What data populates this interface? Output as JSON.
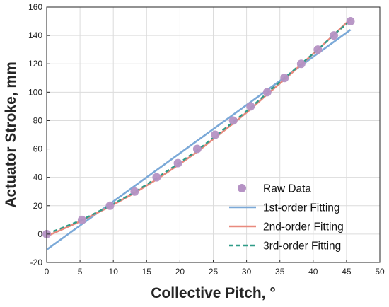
{
  "chart_data": {
    "type": "line",
    "title": "",
    "xlabel": "Collective Pitch, °",
    "ylabel": "Actuator Stroke, mm",
    "xlim": [
      0,
      50
    ],
    "ylim": [
      -20,
      160
    ],
    "xticks": [
      "0",
      "5",
      "10",
      "15",
      "20",
      "25",
      "30",
      "35",
      "40",
      "45",
      "50"
    ],
    "yticks": [
      "-20",
      "0",
      "20",
      "40",
      "60",
      "80",
      "100",
      "120",
      "140",
      "160"
    ],
    "grid": true,
    "legend_position": "bottom-right",
    "series": [
      {
        "name": "Raw Data",
        "kind": "scatter",
        "color": "#b592c4",
        "x": [
          0,
          5.3,
          9.5,
          13.2,
          16.5,
          19.7,
          22.6,
          25.3,
          28,
          30.6,
          33.1,
          35.7,
          38.2,
          40.7,
          43.1,
          45.6
        ],
        "y": [
          0,
          10,
          20,
          30,
          40,
          50,
          60,
          70,
          80,
          90,
          100,
          110,
          120,
          130,
          140,
          150
        ]
      },
      {
        "name": "1st-order Fitting",
        "kind": "line",
        "color": "#7ba9d8",
        "x": [
          0,
          45.6
        ],
        "y": [
          -11,
          144
        ]
      },
      {
        "name": "2nd-order Fitting",
        "kind": "line",
        "color": "#e98a7e",
        "x": [
          0,
          5.3,
          9.5,
          13.2,
          16.5,
          19.7,
          22.6,
          25.3,
          28,
          30.6,
          33.1,
          35.7,
          38.2,
          40.7,
          43.1,
          45.6
        ],
        "y": [
          -1.5,
          9.5,
          19.5,
          29,
          38.5,
          48.5,
          58,
          68,
          78,
          88,
          98.5,
          109,
          119.5,
          130,
          140.5,
          151.5
        ]
      },
      {
        "name": "3rd-order Fitting",
        "kind": "dashed-line",
        "color": "#2f9c88",
        "x": [
          0,
          5.3,
          9.5,
          13.2,
          16.5,
          19.7,
          22.6,
          25.3,
          28,
          30.6,
          33.1,
          35.7,
          38.2,
          40.7,
          43.1,
          45.6
        ],
        "y": [
          0,
          10,
          20,
          29.5,
          39.5,
          49.5,
          59,
          69,
          79,
          89,
          99.5,
          110,
          120,
          130,
          140.5,
          150.5
        ]
      }
    ]
  }
}
